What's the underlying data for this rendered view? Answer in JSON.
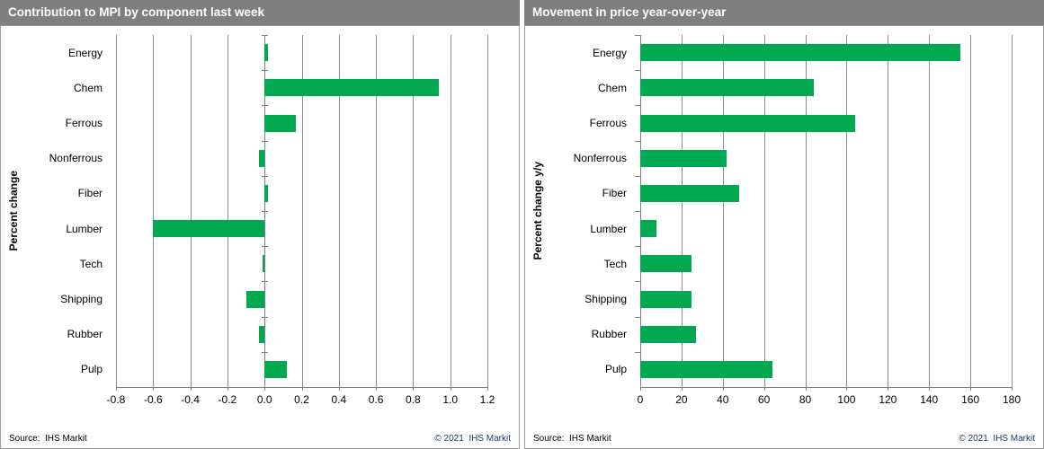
{
  "panels": [
    {
      "title": "Contribution to MPI by component last week",
      "source": "Source:  IHS Markit",
      "copyright": "© 2021  IHS Markit"
    },
    {
      "title": "Movement in price year-over-year",
      "source": "Source:  IHS Markit",
      "copyright": "© 2021  IHS Markit"
    }
  ],
  "colors": {
    "bar": "#00a850",
    "titlebar": "#7f7f7f",
    "grid": "#8c8c8c",
    "axis": "#7f7f7f",
    "border": "#9a9a9a",
    "copyright": "#1f3864"
  },
  "chart_data": [
    {
      "type": "bar",
      "orientation": "horizontal",
      "title": "Contribution to MPI by component last week",
      "xlabel": "",
      "ylabel": "Percent change",
      "categories": [
        "Energy",
        "Chem",
        "Ferrous",
        "Nonferrous",
        "Fiber",
        "Lumber",
        "Tech",
        "Shipping",
        "Rubber",
        "Pulp"
      ],
      "values": [
        0.02,
        0.94,
        0.17,
        -0.03,
        0.02,
        -0.6,
        -0.01,
        -0.1,
        -0.03,
        0.12
      ],
      "xlim": [
        -0.8,
        1.2
      ],
      "xstep": 0.2,
      "tick_decimals": 1,
      "grid": true,
      "legend": false
    },
    {
      "type": "bar",
      "orientation": "horizontal",
      "title": "Movement in price year-over-year",
      "xlabel": "",
      "ylabel": "Percent change y/y",
      "categories": [
        "Energy",
        "Chem",
        "Ferrous",
        "Nonferrous",
        "Fiber",
        "Lumber",
        "Tech",
        "Shipping",
        "Rubber",
        "Pulp"
      ],
      "values": [
        155,
        84,
        104,
        42,
        48,
        8,
        25,
        25,
        27,
        64
      ],
      "xlim": [
        0,
        180
      ],
      "xstep": 20,
      "tick_decimals": 0,
      "grid": true,
      "legend": false
    }
  ]
}
